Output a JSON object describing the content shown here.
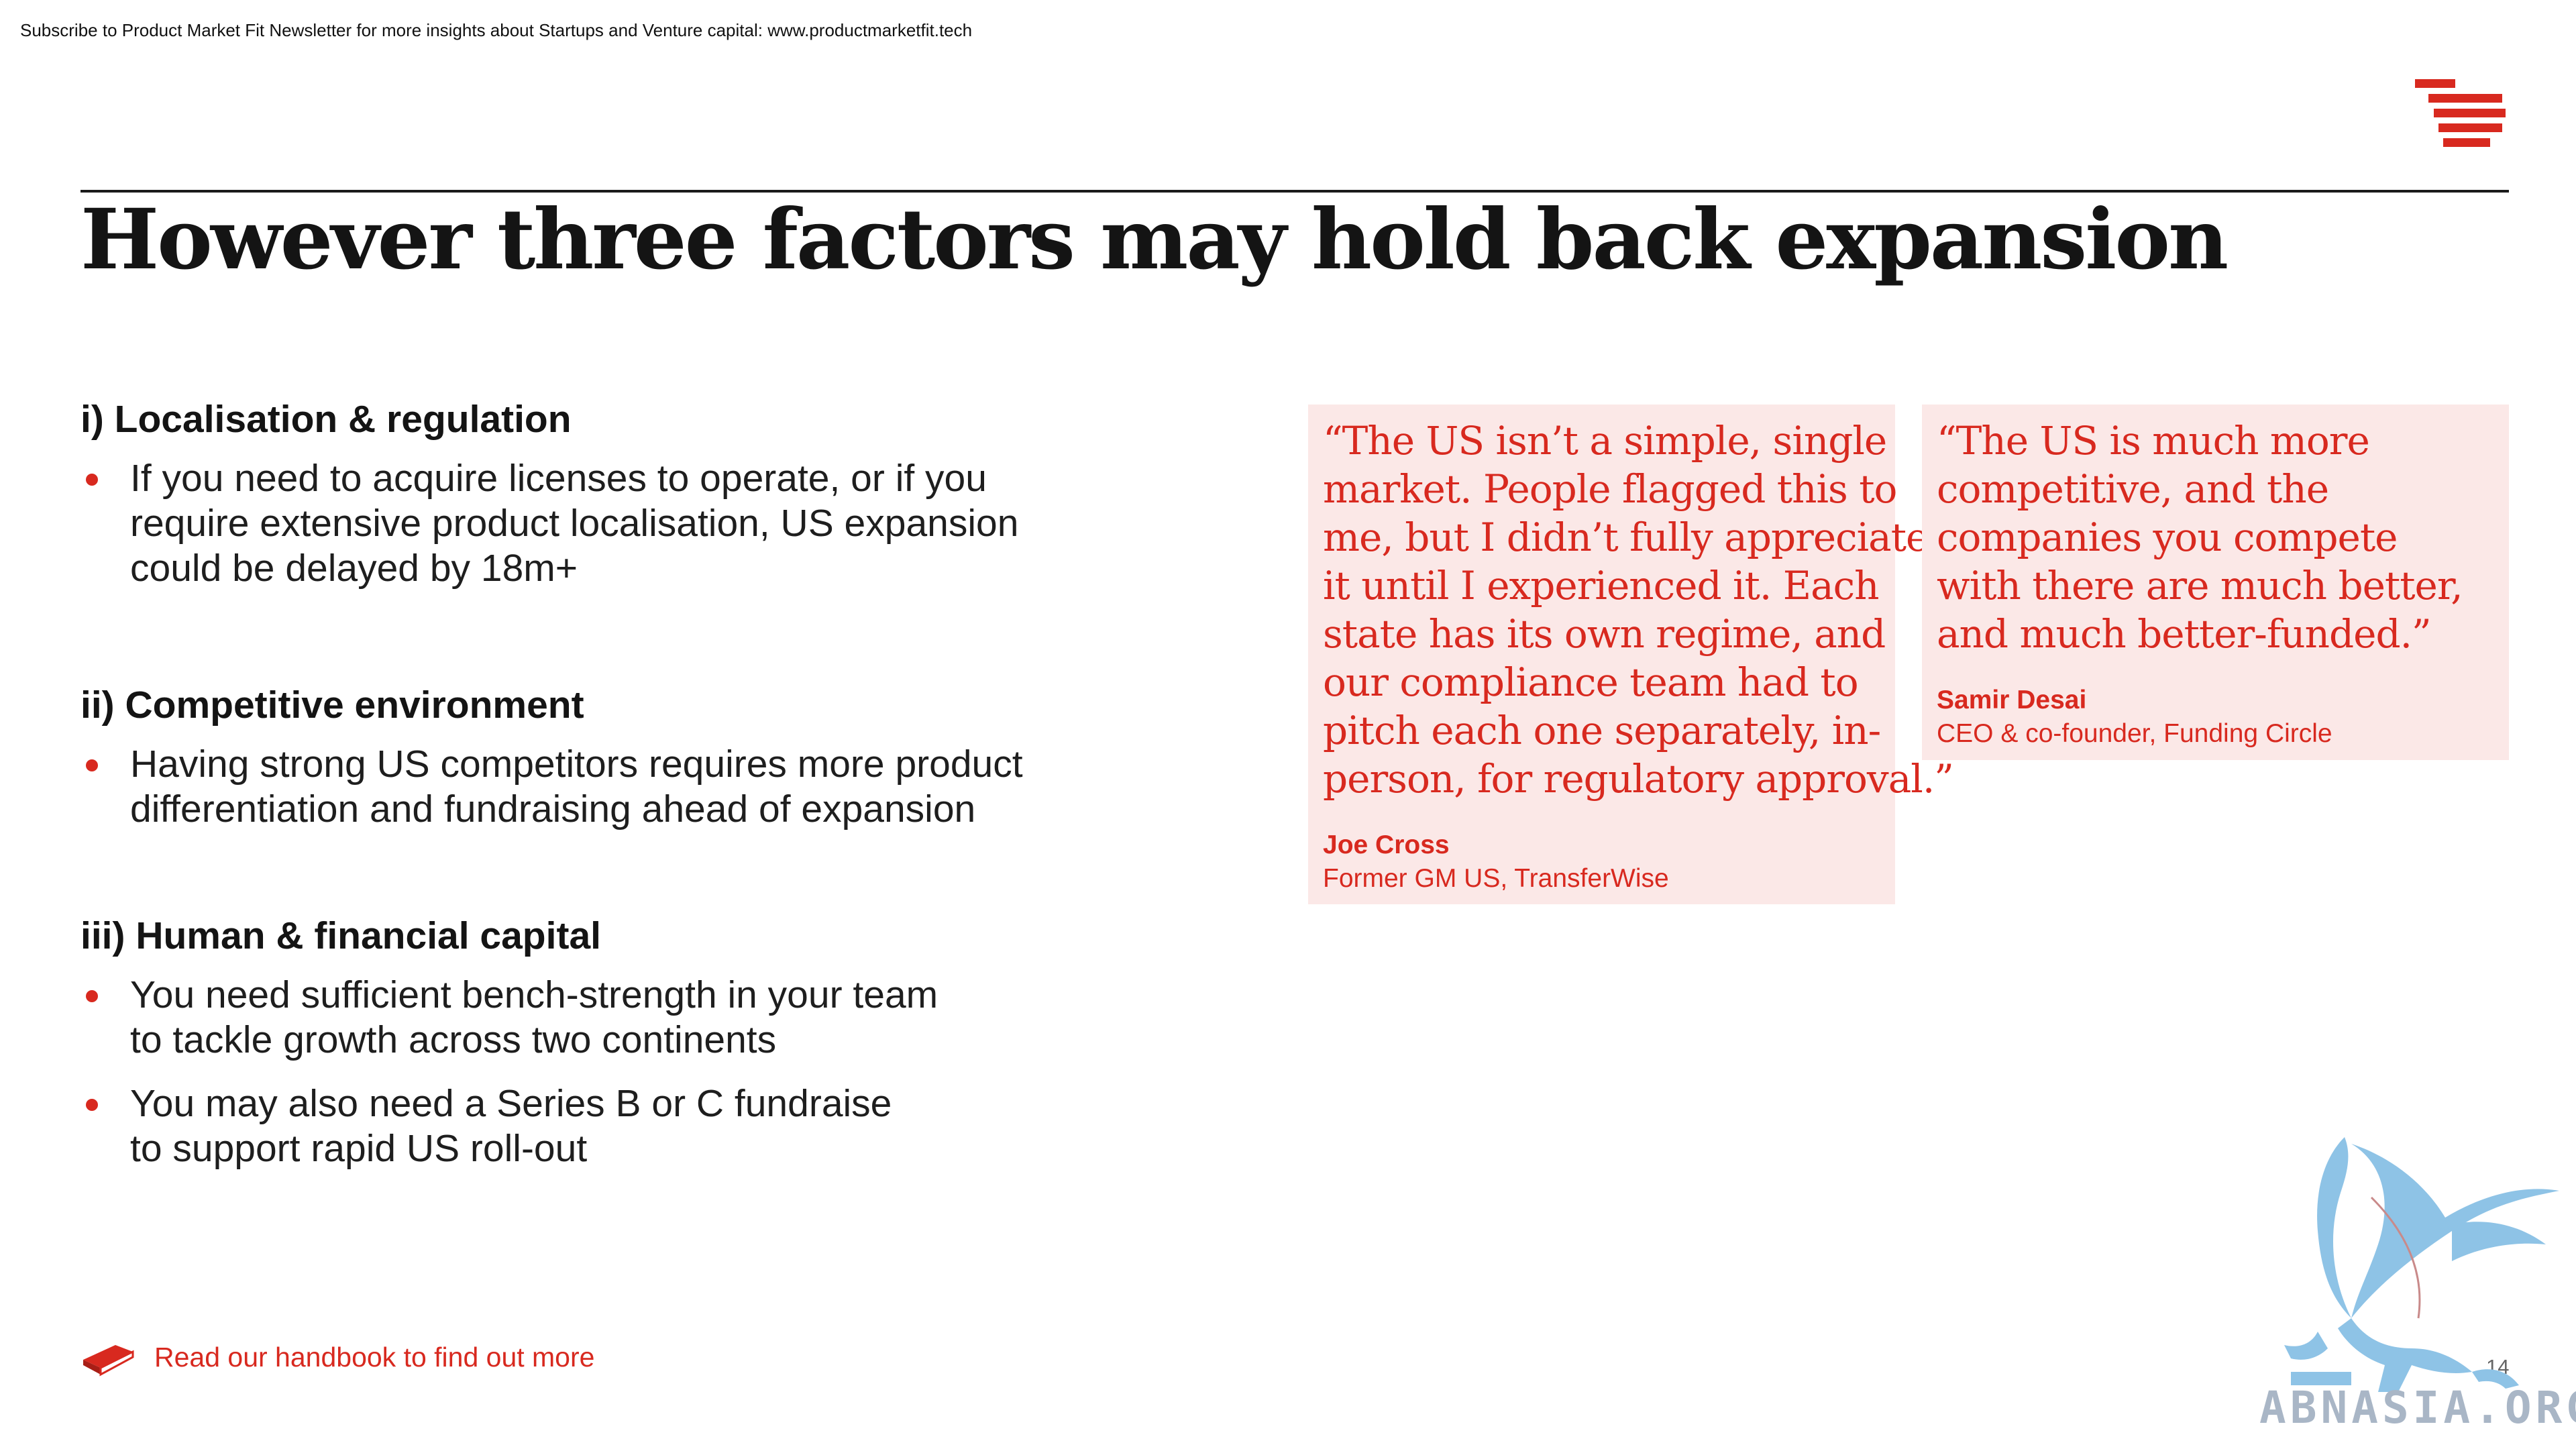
{
  "header": {
    "subscribe_note": "Subscribe to Product Market Fit Newsletter for more insights about Startups and Venture capital:  www.productmarketfit.tech"
  },
  "brand": {
    "logo_icon": "striped-bars-logo",
    "accent_color": "#d8291f"
  },
  "title": "However three factors may hold back expansion",
  "sections": [
    {
      "heading": "i) Localisation & regulation",
      "bullets": [
        [
          "If you need to acquire licenses to operate, or if you",
          "require extensive product localisation, US expansion",
          "could be delayed by 18m+"
        ]
      ]
    },
    {
      "heading": "ii) Competitive environment",
      "bullets": [
        [
          "Having strong US competitors requires more product",
          "differentiation and fundraising ahead of expansion"
        ]
      ]
    },
    {
      "heading": "iii) Human & financial capital",
      "bullets": [
        [
          "You need sufficient bench-strength in your team",
          "to tackle growth across two continents"
        ],
        [
          "You may also need a Series B or C fundraise",
          "to support rapid US roll-out"
        ]
      ]
    }
  ],
  "quotes": [
    {
      "lines": [
        "“The US isn’t a simple, single",
        "market. People flagged this to",
        "me, but I didn’t fully appreciate",
        "it until I experienced it. Each",
        "state has its own regime, and",
        "our compliance team had to",
        "pitch each one separately, in-",
        "person, for regulatory approval.”"
      ],
      "name": "Joe Cross",
      "role": "Former GM US, TransferWise",
      "background": "#fbe8e7"
    },
    {
      "lines": [
        "“The US is much more",
        "competitive, and the",
        "companies you compete",
        "with there are much better,",
        "and much better-funded.”"
      ],
      "name": "Samir Desai",
      "role": "CEO & co-founder, Funding Circle",
      "background": "#fbe8e7"
    }
  ],
  "footer": {
    "link_text": "Read our handbook to find out more",
    "icon": "book-icon",
    "page_number": "14"
  },
  "watermark": {
    "text": "ABNASIA.ORG",
    "icon": "griffin-icon"
  }
}
